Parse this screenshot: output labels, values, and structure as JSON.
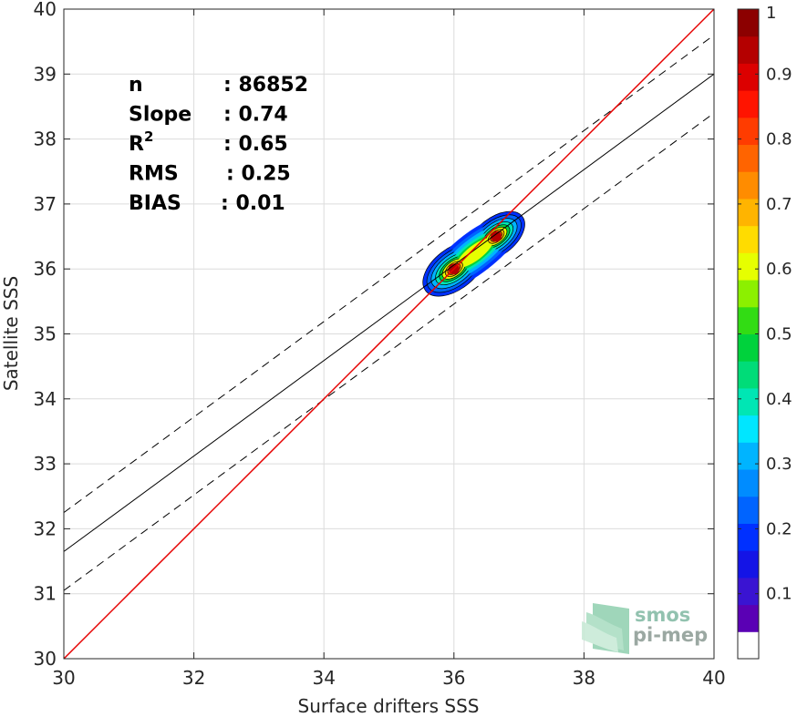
{
  "chart_data": {
    "type": "contour-density scatter",
    "xlabel": "Surface drifters SSS",
    "ylabel": "Satellite SSS",
    "xlim": [
      30,
      40
    ],
    "ylim": [
      30,
      40
    ],
    "xticks": [
      30,
      32,
      34,
      36,
      38,
      40
    ],
    "yticks": [
      30,
      31,
      32,
      33,
      34,
      35,
      36,
      37,
      38,
      39,
      40
    ],
    "grid": true,
    "stats": [
      {
        "label": "n",
        "value": ": 86852"
      },
      {
        "label": "Slope",
        "value": ": 0.74"
      },
      {
        "label": "R",
        "sup": "2",
        "value": ": 0.65"
      },
      {
        "label": "RMS",
        "value": ": 0.25"
      },
      {
        "label": "BIAS",
        "value": ": 0.01"
      }
    ],
    "lines": {
      "identity": {
        "x": [
          30,
          40
        ],
        "y": [
          30,
          40
        ],
        "color": "#e60000"
      },
      "regression": {
        "x": [
          30,
          40
        ],
        "y": [
          31.65,
          39.0
        ]
      },
      "regression_upper": {
        "x": [
          30,
          40
        ],
        "y": [
          32.25,
          39.6
        ]
      },
      "regression_lower": {
        "x": [
          30,
          40
        ],
        "y": [
          31.05,
          38.4
        ]
      }
    },
    "density_peaks": [
      {
        "x": 36.0,
        "y": 36.0,
        "value": 1.0
      },
      {
        "x": 36.65,
        "y": 36.5,
        "value": 0.95
      }
    ],
    "colorbar": {
      "range": [
        0,
        1
      ],
      "ticks": [
        "0.1",
        "0.2",
        "0.3",
        "0.4",
        "0.5",
        "0.6",
        "0.7",
        "0.8",
        "0.9",
        "1"
      ],
      "colors": [
        "#ffffff",
        "#5a00b4",
        "#3a14d2",
        "#1414e6",
        "#0030ff",
        "#0064ff",
        "#008cff",
        "#00b4ff",
        "#00e6ff",
        "#00e6b4",
        "#00dc78",
        "#00d23c",
        "#32dc14",
        "#8cf000",
        "#e6ff00",
        "#ffdc00",
        "#ffb400",
        "#ff8c00",
        "#ff6400",
        "#ff3c00",
        "#ff1400",
        "#dc0000",
        "#b40000",
        "#8c0000"
      ]
    }
  },
  "logo": {
    "line1": "smos",
    "line2": "pi-mep"
  }
}
